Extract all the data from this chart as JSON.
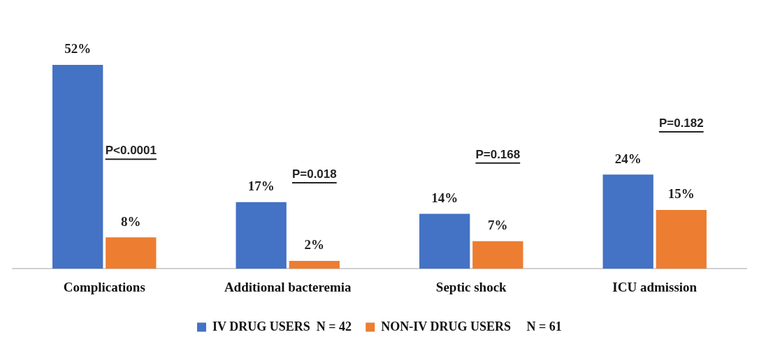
{
  "chart_data": {
    "type": "bar",
    "categories": [
      "Complications",
      "Additional bacteremia",
      "Septic shock",
      "ICU admission"
    ],
    "series": [
      {
        "name": "IV DRUG USERS  N = 42",
        "color": "#4472c4",
        "values": [
          52,
          17,
          14,
          24
        ],
        "value_labels": [
          "52%",
          "17%",
          "14%",
          "24%"
        ]
      },
      {
        "name": "NON-IV DRUG USERS     N = 61",
        "color": "#ed7d31",
        "values": [
          8,
          2,
          7,
          15
        ],
        "value_labels": [
          "8%",
          "2%",
          "7%",
          "15%"
        ]
      }
    ],
    "annotations": [
      "P<0.0001",
      "P=0.018",
      "P=0.168",
      "P=0.182"
    ],
    "grid": false,
    "legend": "bottom"
  }
}
